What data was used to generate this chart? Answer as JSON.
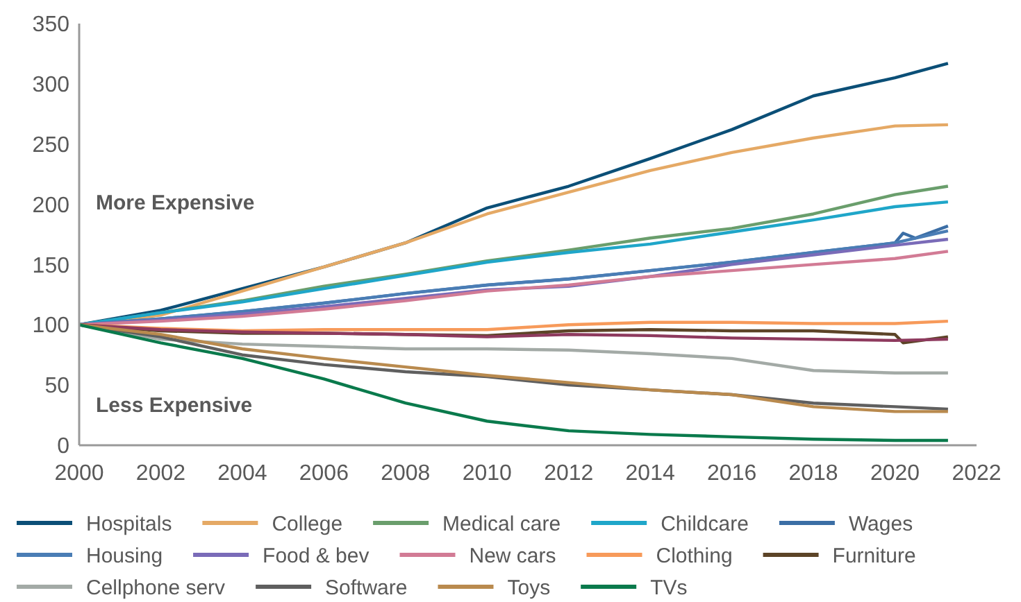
{
  "chart_data": {
    "type": "line",
    "x": [
      2000,
      2002,
      2004,
      2006,
      2008,
      2010,
      2012,
      2014,
      2016,
      2018,
      2020,
      2021.3
    ],
    "xlim": [
      2000,
      2022
    ],
    "xticks": [
      2000,
      2002,
      2004,
      2006,
      2008,
      2010,
      2012,
      2014,
      2016,
      2018,
      2020,
      2022
    ],
    "ylim": [
      0,
      350
    ],
    "yticks": [
      0,
      50,
      100,
      150,
      200,
      250,
      300,
      350
    ],
    "grid": false,
    "legend": "bottom",
    "line_style": "solid",
    "annotations": [
      "More Expensive",
      "Less Expensive"
    ],
    "series": [
      {
        "name": "Hospitals",
        "color": "#0b4f77",
        "values": [
          100,
          112,
          130,
          148,
          168,
          197,
          215,
          238,
          262,
          290,
          305,
          317
        ]
      },
      {
        "name": "College",
        "color": "#e5a965",
        "values": [
          100,
          108,
          128,
          148,
          168,
          192,
          210,
          228,
          243,
          255,
          265,
          266
        ]
      },
      {
        "name": "Medical care",
        "color": "#6a9e6c",
        "values": [
          100,
          110,
          120,
          132,
          142,
          153,
          162,
          172,
          180,
          192,
          208,
          215
        ]
      },
      {
        "name": "Childcare",
        "color": "#1fa6c9",
        "values": [
          100,
          110,
          119,
          130,
          141,
          152,
          160,
          167,
          177,
          187,
          198,
          202
        ]
      },
      {
        "name": "Wages",
        "color": "#3b6ea5",
        "x": [
          2000,
          2002,
          2004,
          2006,
          2008,
          2010,
          2012,
          2014,
          2016,
          2018,
          2020,
          2020.2,
          2020.5,
          2021.3
        ],
        "values": [
          100,
          105,
          111,
          118,
          126,
          133,
          138,
          145,
          152,
          160,
          168,
          176,
          172,
          182
        ]
      },
      {
        "name": "Housing",
        "color": "#4a7db5",
        "values": [
          100,
          105,
          111,
          118,
          126,
          133,
          138,
          145,
          152,
          160,
          168,
          178
        ]
      },
      {
        "name": "Food & bev",
        "color": "#7a6bb8",
        "values": [
          100,
          104,
          109,
          115,
          122,
          129,
          132,
          140,
          150,
          158,
          166,
          171
        ]
      },
      {
        "name": "New cars",
        "color": "#d27b95",
        "values": [
          100,
          103,
          107,
          113,
          120,
          128,
          133,
          140,
          145,
          150,
          155,
          161
        ]
      },
      {
        "name": "Clothing",
        "color": "#f79a5a",
        "values": [
          100,
          97,
          95,
          96,
          96,
          96,
          100,
          102,
          102,
          101,
          101,
          103
        ]
      },
      {
        "name": "Furniture",
        "color": "#5c4427",
        "x": [
          2000,
          2002,
          2004,
          2006,
          2008,
          2010,
          2012,
          2014,
          2016,
          2018,
          2020,
          2020.2,
          2021.3
        ],
        "values": [
          100,
          95,
          93,
          93,
          92,
          91,
          95,
          96,
          95,
          95,
          92,
          85,
          90
        ]
      },
      {
        "color": "#8e3a5e",
        "values": [
          100,
          96,
          94,
          93,
          92,
          90,
          92,
          91,
          89,
          88,
          87,
          88
        ]
      },
      {
        "name": "Cellphone serv",
        "color": "#a3aaa6",
        "values": [
          100,
          88,
          84,
          82,
          80,
          80,
          79,
          76,
          72,
          62,
          60,
          60
        ]
      },
      {
        "name": "Software",
        "color": "#5f5f5f",
        "values": [
          100,
          90,
          75,
          67,
          61,
          57,
          50,
          46,
          42,
          35,
          32,
          30
        ]
      },
      {
        "name": "Toys",
        "color": "#b98a4e",
        "values": [
          100,
          92,
          80,
          72,
          65,
          58,
          52,
          46,
          42,
          32,
          28,
          28
        ]
      },
      {
        "name": "TVs",
        "color": "#0a7a4c",
        "values": [
          100,
          85,
          72,
          55,
          35,
          20,
          12,
          9,
          7,
          5,
          4,
          4
        ]
      }
    ]
  }
}
